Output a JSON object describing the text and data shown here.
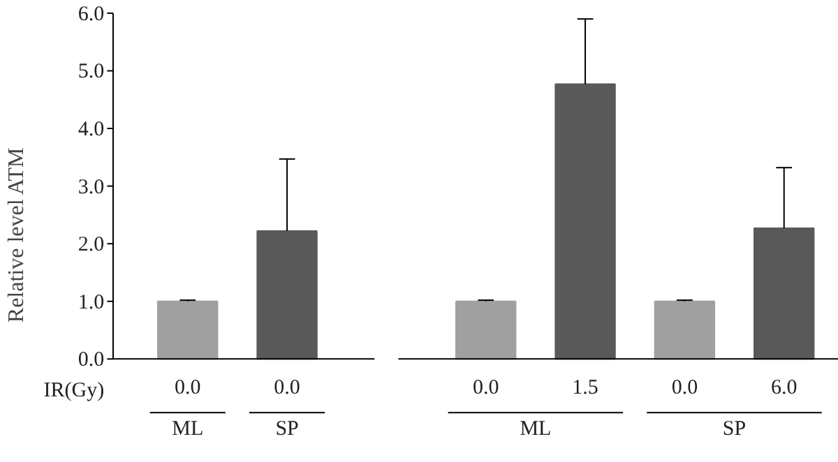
{
  "chart_data": {
    "type": "bar",
    "xlabel": "IR(Gy)",
    "ylabel": "Relative level ATM",
    "categories": [
      "0.0",
      "0.0",
      null,
      "0.0",
      "1.5",
      "0.0",
      "6.0"
    ],
    "values": [
      1.0,
      2.22,
      null,
      1.0,
      4.77,
      1.0,
      2.27
    ],
    "colors": [
      "#a0a0a0",
      "#595959",
      null,
      "#a0a0a0",
      "#595959",
      "#a0a0a0",
      "#595959"
    ],
    "errors": [
      [
        1.0,
        1.02
      ],
      [
        2.22,
        3.47
      ],
      null,
      [
        1.0,
        1.02
      ],
      [
        4.77,
        5.9
      ],
      [
        1.0,
        1.02
      ],
      [
        2.27,
        3.32
      ]
    ],
    "ylim": [
      0,
      6
    ],
    "yticks": [
      {
        "value": 0,
        "label": "0.0"
      },
      {
        "value": 1,
        "label": "1.0"
      },
      {
        "value": 2,
        "label": "2.0"
      },
      {
        "value": 3,
        "label": "3.0"
      },
      {
        "value": 4,
        "label": "4.0"
      },
      {
        "value": 5,
        "label": "5.0"
      },
      {
        "value": 6,
        "label": "6.0"
      }
    ],
    "annotations": [
      "ML",
      "SP",
      "ML",
      "SP"
    ]
  }
}
